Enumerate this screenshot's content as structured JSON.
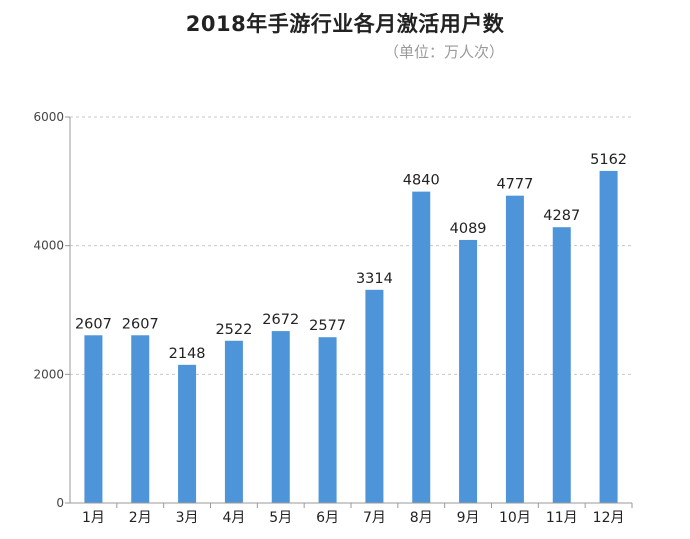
{
  "header": {
    "title": "2018年手游行业各月激活用户数",
    "unit": "（单位：万人次）"
  },
  "chart_data": {
    "type": "bar",
    "title": "2018年手游行业各月激活用户数",
    "subtitle": "（单位：万人次）",
    "categories": [
      "1月",
      "2月",
      "3月",
      "4月",
      "5月",
      "6月",
      "7月",
      "8月",
      "9月",
      "10月",
      "11月",
      "12月"
    ],
    "values": [
      2607,
      2607,
      2148,
      2522,
      2672,
      2577,
      3314,
      4840,
      4089,
      4777,
      4287,
      5162
    ],
    "yticks": [
      "0",
      "2000",
      "4000",
      "6000"
    ],
    "ylim": [
      0,
      6000
    ],
    "grid": true,
    "legend": "none",
    "colors": {
      "bar": "#4d94d8",
      "grid": "#c8c8c8",
      "axis": "#9a9a9a"
    }
  }
}
